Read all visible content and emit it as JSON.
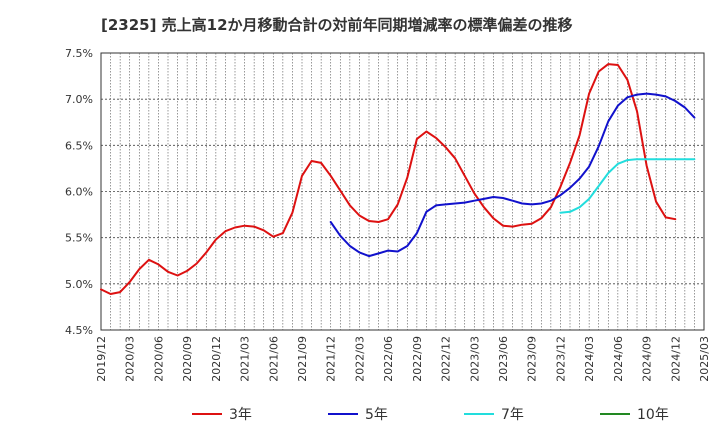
{
  "chart_data": {
    "type": "line",
    "title": "[2325]  売上高12か月移動合計の対前年同期増減率の標準偏差の推移",
    "xlabel": "",
    "ylabel": "",
    "ylim": [
      4.5,
      7.5
    ],
    "y_ticks": [
      "7.5%",
      "7.0%",
      "6.5%",
      "6.0%",
      "5.5%",
      "5.0%",
      "4.5%"
    ],
    "y_tick_values": [
      7.5,
      7.0,
      6.5,
      6.0,
      5.5,
      5.0,
      4.5
    ],
    "x_ticks": [
      "2019/12",
      "2020/03",
      "2020/06",
      "2020/09",
      "2020/12",
      "2021/03",
      "2021/06",
      "2021/09",
      "2021/12",
      "2022/03",
      "2022/06",
      "2022/09",
      "2022/12",
      "2023/03",
      "2023/06",
      "2023/09",
      "2023/12",
      "2024/03",
      "2024/06",
      "2024/09",
      "2024/12",
      "2025/03"
    ],
    "x_start": "2019/12",
    "x_end": "2025/03",
    "grid": true,
    "legend_position": "bottom",
    "series": [
      {
        "name": "3年",
        "color": "#dd1111",
        "start": "2019/12",
        "values": [
          4.94,
          4.89,
          4.91,
          5.02,
          5.16,
          5.26,
          5.21,
          5.13,
          5.09,
          5.14,
          5.22,
          5.34,
          5.48,
          5.57,
          5.61,
          5.63,
          5.62,
          5.58,
          5.51,
          5.55,
          5.77,
          6.17,
          6.33,
          6.31,
          6.17,
          6.01,
          5.85,
          5.74,
          5.68,
          5.67,
          5.7,
          5.86,
          6.15,
          6.57,
          6.65,
          6.58,
          6.48,
          6.36,
          6.17,
          5.98,
          5.83,
          5.71,
          5.63,
          5.62,
          5.64,
          5.65,
          5.71,
          5.83,
          6.05,
          6.31,
          6.61,
          7.06,
          7.3,
          7.38,
          7.37,
          7.21,
          6.87,
          6.28,
          5.89,
          5.72,
          5.7
        ]
      },
      {
        "name": "5年",
        "color": "#1111cc",
        "start": "2021/12",
        "values": [
          5.67,
          5.52,
          5.41,
          5.34,
          5.3,
          5.33,
          5.36,
          5.35,
          5.41,
          5.55,
          5.78,
          5.85,
          5.86,
          5.87,
          5.88,
          5.9,
          5.92,
          5.94,
          5.93,
          5.9,
          5.87,
          5.86,
          5.87,
          5.9,
          5.96,
          6.04,
          6.14,
          6.27,
          6.49,
          6.76,
          6.93,
          7.02,
          7.05,
          7.06,
          7.05,
          7.03,
          6.98,
          6.91,
          6.8
        ]
      },
      {
        "name": "7年",
        "color": "#22dddd",
        "start": "2023/12",
        "values": [
          5.77,
          5.78,
          5.83,
          5.92,
          6.06,
          6.2,
          6.3,
          6.34,
          6.35,
          6.35,
          6.35,
          6.35,
          6.35,
          6.35,
          6.35
        ]
      },
      {
        "name": "10年",
        "color": "#228822",
        "start": "2024/12",
        "values": []
      }
    ]
  }
}
